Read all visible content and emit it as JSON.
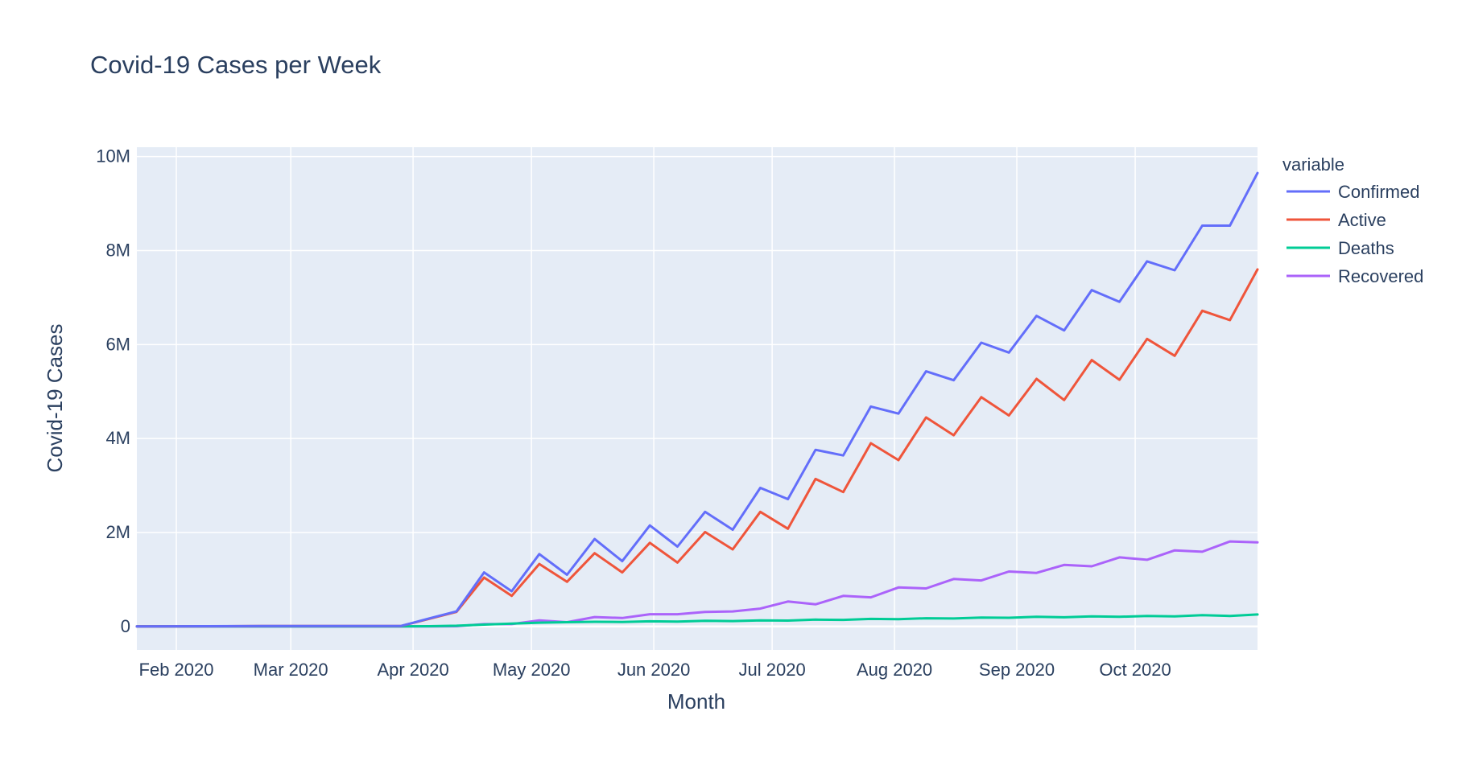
{
  "chart_data": {
    "type": "line",
    "title": "Covid-19 Cases per Week",
    "xlabel": "Month",
    "ylabel": "Covid-19 Cases",
    "legend_title": "variable",
    "legend_position": "top-right",
    "grid": true,
    "x_axis_type": "date",
    "x_range": [
      "2020-01-22",
      "2020-11-01"
    ],
    "ylim": [
      -500000,
      10200000
    ],
    "x_ticks": [
      {
        "date": "2020-02-01",
        "label": "Feb 2020"
      },
      {
        "date": "2020-03-01",
        "label": "Mar 2020"
      },
      {
        "date": "2020-04-01",
        "label": "Apr 2020"
      },
      {
        "date": "2020-05-01",
        "label": "May 2020"
      },
      {
        "date": "2020-06-01",
        "label": "Jun 2020"
      },
      {
        "date": "2020-07-01",
        "label": "Jul 2020"
      },
      {
        "date": "2020-08-01",
        "label": "Aug 2020"
      },
      {
        "date": "2020-09-01",
        "label": "Sep 2020"
      },
      {
        "date": "2020-10-01",
        "label": "Oct 2020"
      }
    ],
    "y_ticks": [
      {
        "value": 0,
        "label": "0"
      },
      {
        "value": 2000000,
        "label": "2M"
      },
      {
        "value": 4000000,
        "label": "4M"
      },
      {
        "value": 6000000,
        "label": "6M"
      },
      {
        "value": 8000000,
        "label": "8M"
      },
      {
        "value": 10000000,
        "label": "10M"
      }
    ],
    "x": [
      "2020-01-22",
      "2020-02-09",
      "2020-02-23",
      "2020-03-08",
      "2020-03-29",
      "2020-04-05",
      "2020-04-12",
      "2020-04-19",
      "2020-04-26",
      "2020-05-03",
      "2020-05-10",
      "2020-05-17",
      "2020-05-24",
      "2020-05-31",
      "2020-06-07",
      "2020-06-14",
      "2020-06-21",
      "2020-06-28",
      "2020-07-05",
      "2020-07-12",
      "2020-07-19",
      "2020-07-26",
      "2020-08-02",
      "2020-08-09",
      "2020-08-16",
      "2020-08-23",
      "2020-08-30",
      "2020-09-06",
      "2020-09-13",
      "2020-09-20",
      "2020-09-27",
      "2020-10-04",
      "2020-10-11",
      "2020-10-18",
      "2020-10-25",
      "2020-11-01"
    ],
    "series": [
      {
        "name": "Confirmed",
        "color": "#636efa",
        "values": [
          0,
          5000,
          10000,
          10000,
          12000,
          170000,
          320000,
          1150000,
          750000,
          1540000,
          1100000,
          1860000,
          1390000,
          2150000,
          1700000,
          2440000,
          2060000,
          2950000,
          2710000,
          3760000,
          3640000,
          4680000,
          4530000,
          5430000,
          5240000,
          6040000,
          5830000,
          6610000,
          6300000,
          7160000,
          6910000,
          7770000,
          7580000,
          8530000,
          8530000,
          9650000
        ]
      },
      {
        "name": "Active",
        "color": "#ef553b",
        "values": [
          0,
          4000,
          8000,
          8000,
          10000,
          160000,
          310000,
          1040000,
          650000,
          1330000,
          950000,
          1560000,
          1150000,
          1780000,
          1360000,
          2010000,
          1640000,
          2440000,
          2080000,
          3140000,
          2860000,
          3900000,
          3540000,
          4450000,
          4070000,
          4880000,
          4490000,
          5270000,
          4820000,
          5670000,
          5250000,
          6120000,
          5760000,
          6720000,
          6520000,
          7600000
        ]
      },
      {
        "name": "Deaths",
        "color": "#00cc96",
        "values": [
          0,
          200,
          500,
          600,
          1000,
          5000,
          15000,
          40000,
          60000,
          80000,
          90000,
          100000,
          95000,
          110000,
          105000,
          120000,
          115000,
          130000,
          125000,
          145000,
          140000,
          160000,
          155000,
          175000,
          170000,
          190000,
          185000,
          205000,
          195000,
          215000,
          205000,
          225000,
          215000,
          240000,
          225000,
          255000
        ]
      },
      {
        "name": "Recovered",
        "color": "#ab63fa",
        "values": [
          0,
          500,
          1000,
          1000,
          1000,
          2000,
          5000,
          50000,
          50000,
          130000,
          90000,
          200000,
          180000,
          260000,
          260000,
          310000,
          320000,
          380000,
          530000,
          470000,
          650000,
          620000,
          830000,
          810000,
          1010000,
          980000,
          1170000,
          1140000,
          1310000,
          1280000,
          1470000,
          1420000,
          1620000,
          1590000,
          1810000,
          1790000
        ]
      }
    ]
  }
}
